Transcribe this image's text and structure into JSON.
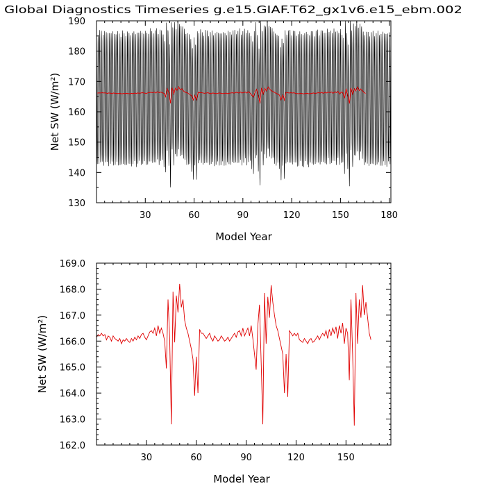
{
  "figure": {
    "title": "Global Diagnostics Timeseries g.e15.GIAF.T62_gx1v6.e15_ebm.002"
  },
  "chart_data": [
    {
      "type": "line",
      "title": "",
      "xlabel": "Model Year",
      "ylabel": "Net SW (W/m²)",
      "xlim": [
        0,
        181
      ],
      "ylim": [
        130,
        190
      ],
      "xticks": [
        30,
        60,
        90,
        120,
        150,
        180
      ],
      "yticks": [
        130,
        140,
        150,
        160,
        170,
        180,
        190
      ],
      "x_tick_labels": [
        "30",
        "60",
        "90",
        "120",
        "150",
        "180"
      ],
      "y_tick_labels": [
        "130",
        "140",
        "150",
        "160",
        "170",
        "180",
        "190"
      ],
      "series": [
        {
          "color": "#000000",
          "kind": "monthly",
          "description": "monthly values with seasonal cycle",
          "cycle_min": 142.8,
          "cycle_max": 186.0
        },
        {
          "color": "#e00000",
          "kind": "annual",
          "description": "annual mean"
        }
      ]
    },
    {
      "type": "line",
      "title": "",
      "xlabel": "Model Year",
      "ylabel": "Net SW (W/m²)",
      "xlim": [
        0,
        177
      ],
      "ylim": [
        162,
        169
      ],
      "xticks": [
        30,
        60,
        90,
        120,
        150
      ],
      "yticks": [
        162,
        163,
        164,
        165,
        166,
        167,
        168,
        169
      ],
      "x_tick_labels": [
        "30",
        "60",
        "90",
        "120",
        "150"
      ],
      "y_tick_labels": [
        "162.0",
        "163.0",
        "164.0",
        "165.0",
        "166.0",
        "167.0",
        "168.0",
        "169.0"
      ],
      "series": [
        {
          "color": "#e00000",
          "kind": "annual",
          "years_start": 1,
          "values": [
            166.15,
            166.25,
            166.2,
            166.3,
            166.2,
            166.25,
            166.05,
            166.2,
            166.15,
            166.0,
            166.2,
            166.1,
            166.05,
            166.0,
            166.1,
            165.9,
            166.05,
            166.0,
            166.1,
            166.0,
            165.95,
            166.1,
            166.0,
            166.15,
            166.05,
            166.2,
            166.1,
            166.25,
            166.3,
            166.15,
            166.05,
            166.2,
            166.35,
            166.4,
            166.3,
            166.5,
            166.2,
            166.6,
            166.3,
            166.5,
            166.3,
            166.0,
            164.95,
            167.6,
            166.1,
            162.8,
            167.9,
            165.95,
            167.75,
            167.1,
            168.2,
            167.3,
            167.6,
            166.8,
            166.5,
            166.3,
            166.0,
            165.7,
            165.3,
            163.9,
            165.4,
            164.0,
            166.45,
            166.3,
            166.3,
            166.2,
            166.1,
            166.2,
            166.3,
            166.1,
            166.0,
            166.2,
            166.1,
            166.0,
            166.05,
            166.2,
            166.1,
            166.0,
            166.05,
            166.15,
            166.0,
            166.1,
            166.2,
            166.3,
            166.15,
            166.35,
            166.4,
            166.2,
            166.5,
            166.2,
            166.35,
            166.5,
            166.2,
            166.6,
            166.1,
            165.5,
            164.9,
            166.6,
            167.4,
            165.2,
            162.8,
            167.85,
            165.9,
            167.7,
            166.9,
            168.15,
            167.5,
            167.0,
            166.6,
            166.4,
            166.1,
            165.8,
            165.5,
            164.0,
            165.5,
            163.85,
            166.4,
            166.3,
            166.2,
            166.3,
            166.2,
            166.3,
            166.05,
            166.0,
            165.95,
            166.1,
            166.0,
            165.9,
            166.05,
            166.1,
            165.95,
            166.0,
            166.1,
            166.2,
            166.05,
            166.2,
            166.3,
            166.2,
            166.4,
            166.1,
            166.45,
            166.2,
            166.5,
            166.3,
            166.55,
            166.1,
            166.6,
            166.3,
            166.7,
            165.9,
            166.5,
            166.3,
            164.5,
            167.6,
            165.5,
            162.75,
            167.85,
            165.9,
            167.6,
            166.9,
            168.15,
            167.0,
            167.5,
            166.9,
            166.3,
            166.05
          ]
        }
      ]
    }
  ]
}
